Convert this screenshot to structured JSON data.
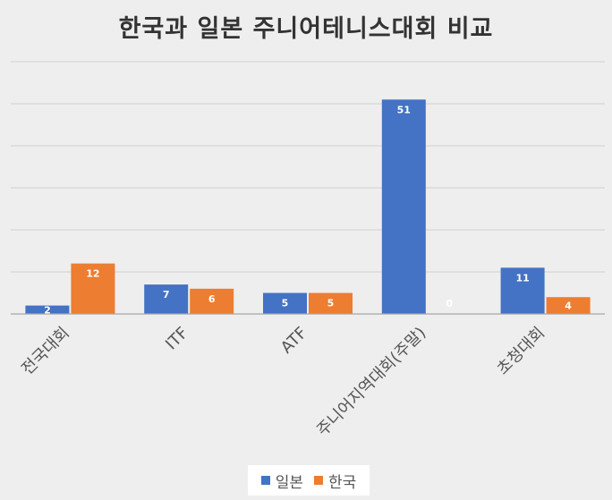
{
  "chart_data": {
    "type": "bar",
    "title": "한국과 일본 주니어테니스대회 비교",
    "categories": [
      "전국대회",
      "ITF",
      "ATF",
      "주니어지역대회(주말)",
      "초청대회"
    ],
    "series": [
      {
        "name": "일본",
        "color": "#4472c4",
        "values": [
          2,
          7,
          5,
          51,
          11
        ]
      },
      {
        "name": "한국",
        "color": "#ed7d31",
        "values": [
          12,
          6,
          5,
          0,
          4
        ]
      }
    ],
    "ylim": [
      0,
      60
    ],
    "gridlines": [
      0,
      10,
      20,
      30,
      40,
      50,
      60
    ],
    "grid": true,
    "legend_position": "bottom",
    "data_labels": true
  }
}
